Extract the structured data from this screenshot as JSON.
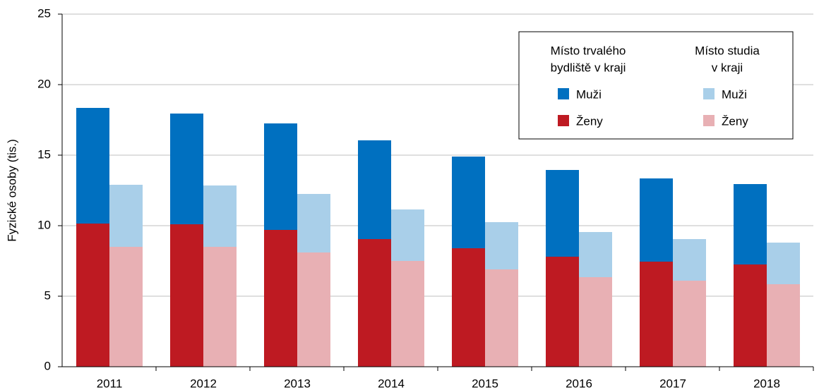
{
  "chart_data": {
    "type": "stacked_grouped_bar",
    "y_label": "Fyzické osoby (tis.)",
    "categories": [
      "2011",
      "2012",
      "2013",
      "2014",
      "2015",
      "2016",
      "2017",
      "2018"
    ],
    "legend_groups": [
      {
        "title_lines": [
          "Místo trvalého",
          "bydliště v kraji"
        ]
      },
      {
        "title_lines": [
          "Místo studia",
          "v kraji"
        ]
      }
    ],
    "series": [
      {
        "name": "Muži",
        "group": 0,
        "color": "#0070c0",
        "values": [
          8.2,
          7.85,
          7.55,
          7.0,
          6.5,
          6.15,
          5.9,
          5.7
        ]
      },
      {
        "name": "Ženy",
        "group": 0,
        "color": "#be1a22",
        "values": [
          10.15,
          10.1,
          9.7,
          9.05,
          8.4,
          7.8,
          7.45,
          7.25
        ]
      },
      {
        "name": "Muži",
        "group": 1,
        "color": "#a9cfe9",
        "values": [
          4.4,
          4.35,
          4.15,
          3.65,
          3.35,
          3.2,
          2.95,
          2.95
        ]
      },
      {
        "name": "Ženy",
        "group": 1,
        "color": "#e8b0b4",
        "values": [
          8.5,
          8.5,
          8.1,
          7.5,
          6.9,
          6.35,
          6.1,
          5.85
        ]
      }
    ],
    "ylim": [
      0,
      25
    ],
    "yticks": [
      0,
      5,
      10,
      15,
      20,
      25
    ],
    "grid": true
  }
}
